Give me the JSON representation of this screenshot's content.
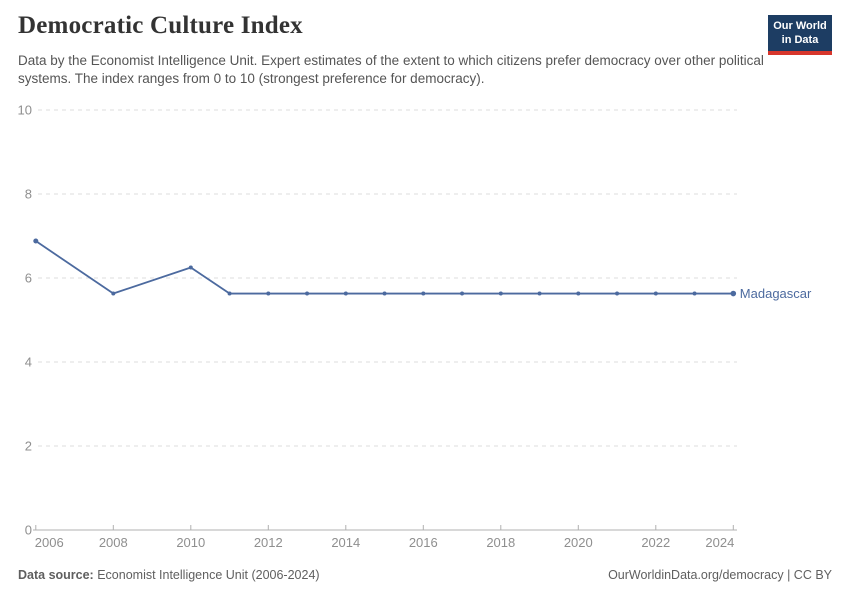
{
  "header": {
    "title": "Democratic Culture Index",
    "subtitle": "Data by the Economist Intelligence Unit. Expert estimates of the extent to which citizens prefer democracy over other political systems. The index ranges from 0 to 10 (strongest preference for democracy).",
    "logo": {
      "line1": "Our World",
      "line2": "in Data"
    }
  },
  "chart_data": {
    "type": "line",
    "title": "Democratic Culture Index",
    "xlabel": "",
    "ylabel": "",
    "xlim": [
      2006,
      2024
    ],
    "ylim": [
      0,
      10
    ],
    "yticks": [
      0,
      2,
      4,
      6,
      8,
      10
    ],
    "xticks": [
      2006,
      2008,
      2010,
      2012,
      2014,
      2016,
      2018,
      2020,
      2022,
      2024
    ],
    "grid": "horizontal-dashed",
    "legend_position": "end-of-line-label",
    "series": [
      {
        "name": "Madagascar",
        "color": "#4c6a9f",
        "x": [
          2006,
          2008,
          2010,
          2011,
          2012,
          2013,
          2014,
          2015,
          2016,
          2017,
          2018,
          2019,
          2020,
          2021,
          2022,
          2023,
          2024
        ],
        "values": [
          6.88,
          5.63,
          6.25,
          5.63,
          5.63,
          5.63,
          5.63,
          5.63,
          5.63,
          5.63,
          5.63,
          5.63,
          5.63,
          5.63,
          5.63,
          5.63,
          5.63
        ]
      }
    ]
  },
  "footer": {
    "source_label": "Data source:",
    "source_text": " Economist Intelligence Unit (2006-2024)",
    "right_text": "OurWorldinData.org/democracy | CC BY"
  },
  "colors": {
    "grid": "#dddddd",
    "axis": "#b0b0b0",
    "tick_label": "#8f8f8f",
    "title": "#333333",
    "subtitle": "#555555",
    "logo_bg": "#1d3d63",
    "logo_accent": "#d7362c"
  }
}
